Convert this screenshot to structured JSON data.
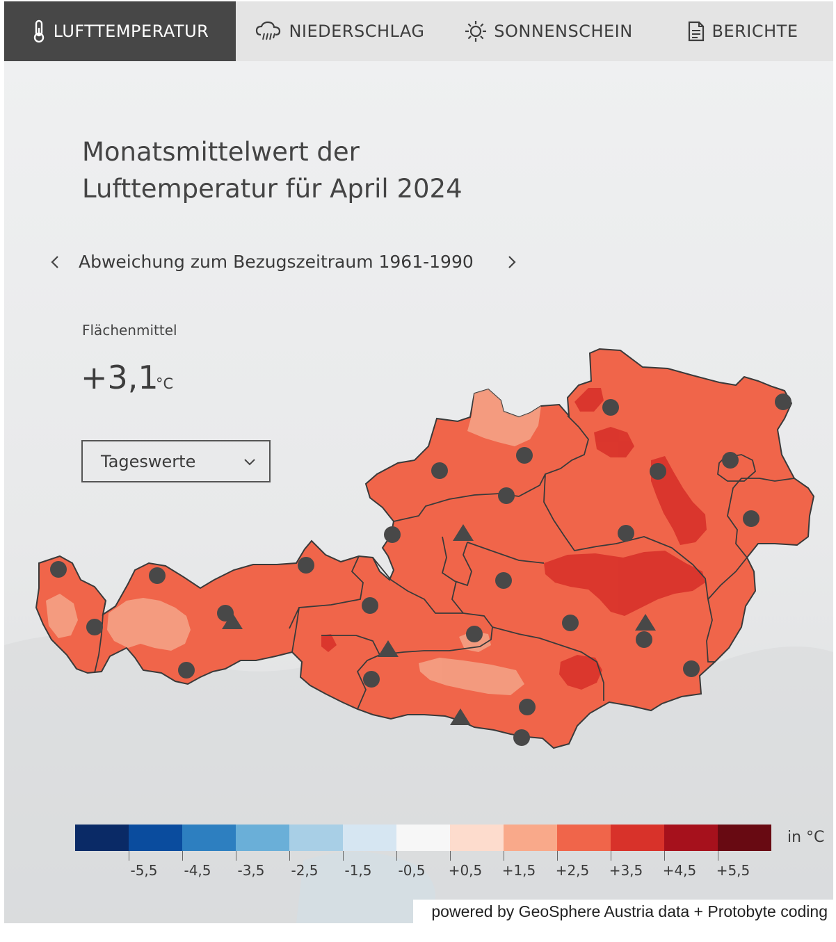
{
  "nav": {
    "tabs": [
      {
        "label": "LUFTTEMPERATUR",
        "icon": "thermometer-icon",
        "active": true
      },
      {
        "label": "NIEDERSCHLAG",
        "icon": "rain-cloud-icon",
        "active": false
      },
      {
        "label": "SONNENSCHEIN",
        "icon": "sun-icon",
        "active": false
      },
      {
        "label": "BERICHTE",
        "icon": "document-icon",
        "active": false
      }
    ]
  },
  "title_line1": "Monatsmittelwert der",
  "title_line2": "Lufttemperatur für April 2024",
  "subtitle": "Abweichung zum Bezugszeitraum 1961-1990",
  "area_mean": {
    "label": "Flächenmittel",
    "value": "+3,1",
    "unit": "°C"
  },
  "select": {
    "value": "Tageswerte"
  },
  "legend": {
    "unit": "in °C",
    "colors": [
      "#0a2a66",
      "#0a4c9e",
      "#2d7fc0",
      "#6aafd8",
      "#a8cfe6",
      "#d6e6f2",
      "#f7f7f7",
      "#fddccd",
      "#f9a98a",
      "#f0654a",
      "#d8322a",
      "#a6111c",
      "#680a12"
    ],
    "ticks": [
      "-5,5",
      "-4,5",
      "-3,5",
      "-2,5",
      "-1,5",
      "-0,5",
      "+0,5",
      "+1,5",
      "+2,5",
      "+3,5",
      "+4,5",
      "+5,5"
    ]
  },
  "map_colors": {
    "base": "#f0654a",
    "warm": "#d8322a",
    "cool": "#f4a488",
    "border": "#3a3a3a",
    "marker": "#484848"
  },
  "credit": "powered by GeoSphere Austria data + Protobyte coding"
}
